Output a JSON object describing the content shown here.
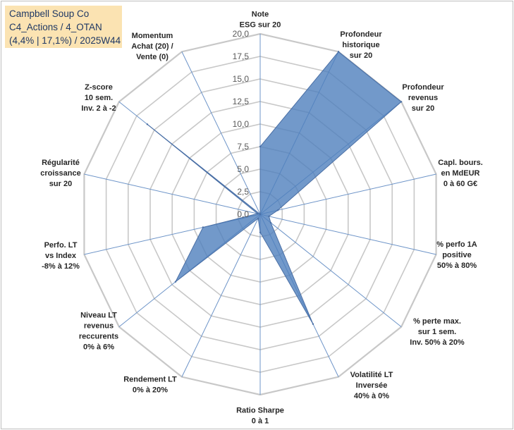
{
  "header": {
    "line1": "Campbell Soup Co",
    "line2": "C4_Actions / 4_OTAN",
    "line3": "(4,4% | 17,1%) / 2025W44"
  },
  "chart_data": {
    "type": "radar",
    "title": "",
    "scale": {
      "min": 0,
      "max": 20,
      "step": 2.5
    },
    "tick_labels": [
      "0,0",
      "2,5",
      "5,0",
      "7,5",
      "10,0",
      "12,5",
      "15,0",
      "17,5",
      "20,0"
    ],
    "axes": [
      [
        "Note",
        "ESG sur 20"
      ],
      [
        "Profondeur",
        "historique",
        "sur 20"
      ],
      [
        "Profondeur",
        "revenus",
        "sur 20"
      ],
      [
        "Capl. bours.",
        "en MdEUR",
        "0 à 60 G€"
      ],
      [
        "% perfo 1A",
        "positive",
        "50% à 80%"
      ],
      [
        "% perte max.",
        "sur 1 sem.",
        "Inv. 50% à 20%"
      ],
      [
        "Volatilité LT",
        "Inversée",
        "40% à 0%"
      ],
      [
        "Ratio Sharpe",
        "0 à 1"
      ],
      [
        "Rendement LT",
        "0% à 20%"
      ],
      [
        "Niveau LT",
        "revenus",
        "reccurents",
        "0% à 6%"
      ],
      [
        "Perfo. LT",
        "vs Index",
        "-8% à 12%"
      ],
      [
        "Régularité",
        "croissance",
        "sur 20"
      ],
      [
        "Z-score",
        "10 sem.",
        "Inv. 2 à -2"
      ],
      [
        "Momentum",
        "Achat (20) /",
        "Vente (0)"
      ]
    ],
    "series": [
      {
        "values": [
          7.5,
          20.0,
          20.0,
          2.0,
          1.0,
          1.5,
          13.5,
          2.0,
          0.5,
          12.0,
          6.5,
          0.3,
          16.0,
          0.0
        ]
      }
    ],
    "colors": {
      "fill": "#4f7fbd",
      "fill_opacity": 0.8,
      "stroke": "#4a6fa5",
      "grid": "#c8c8c8",
      "spoke": "#6d94c8"
    },
    "grid": true
  }
}
